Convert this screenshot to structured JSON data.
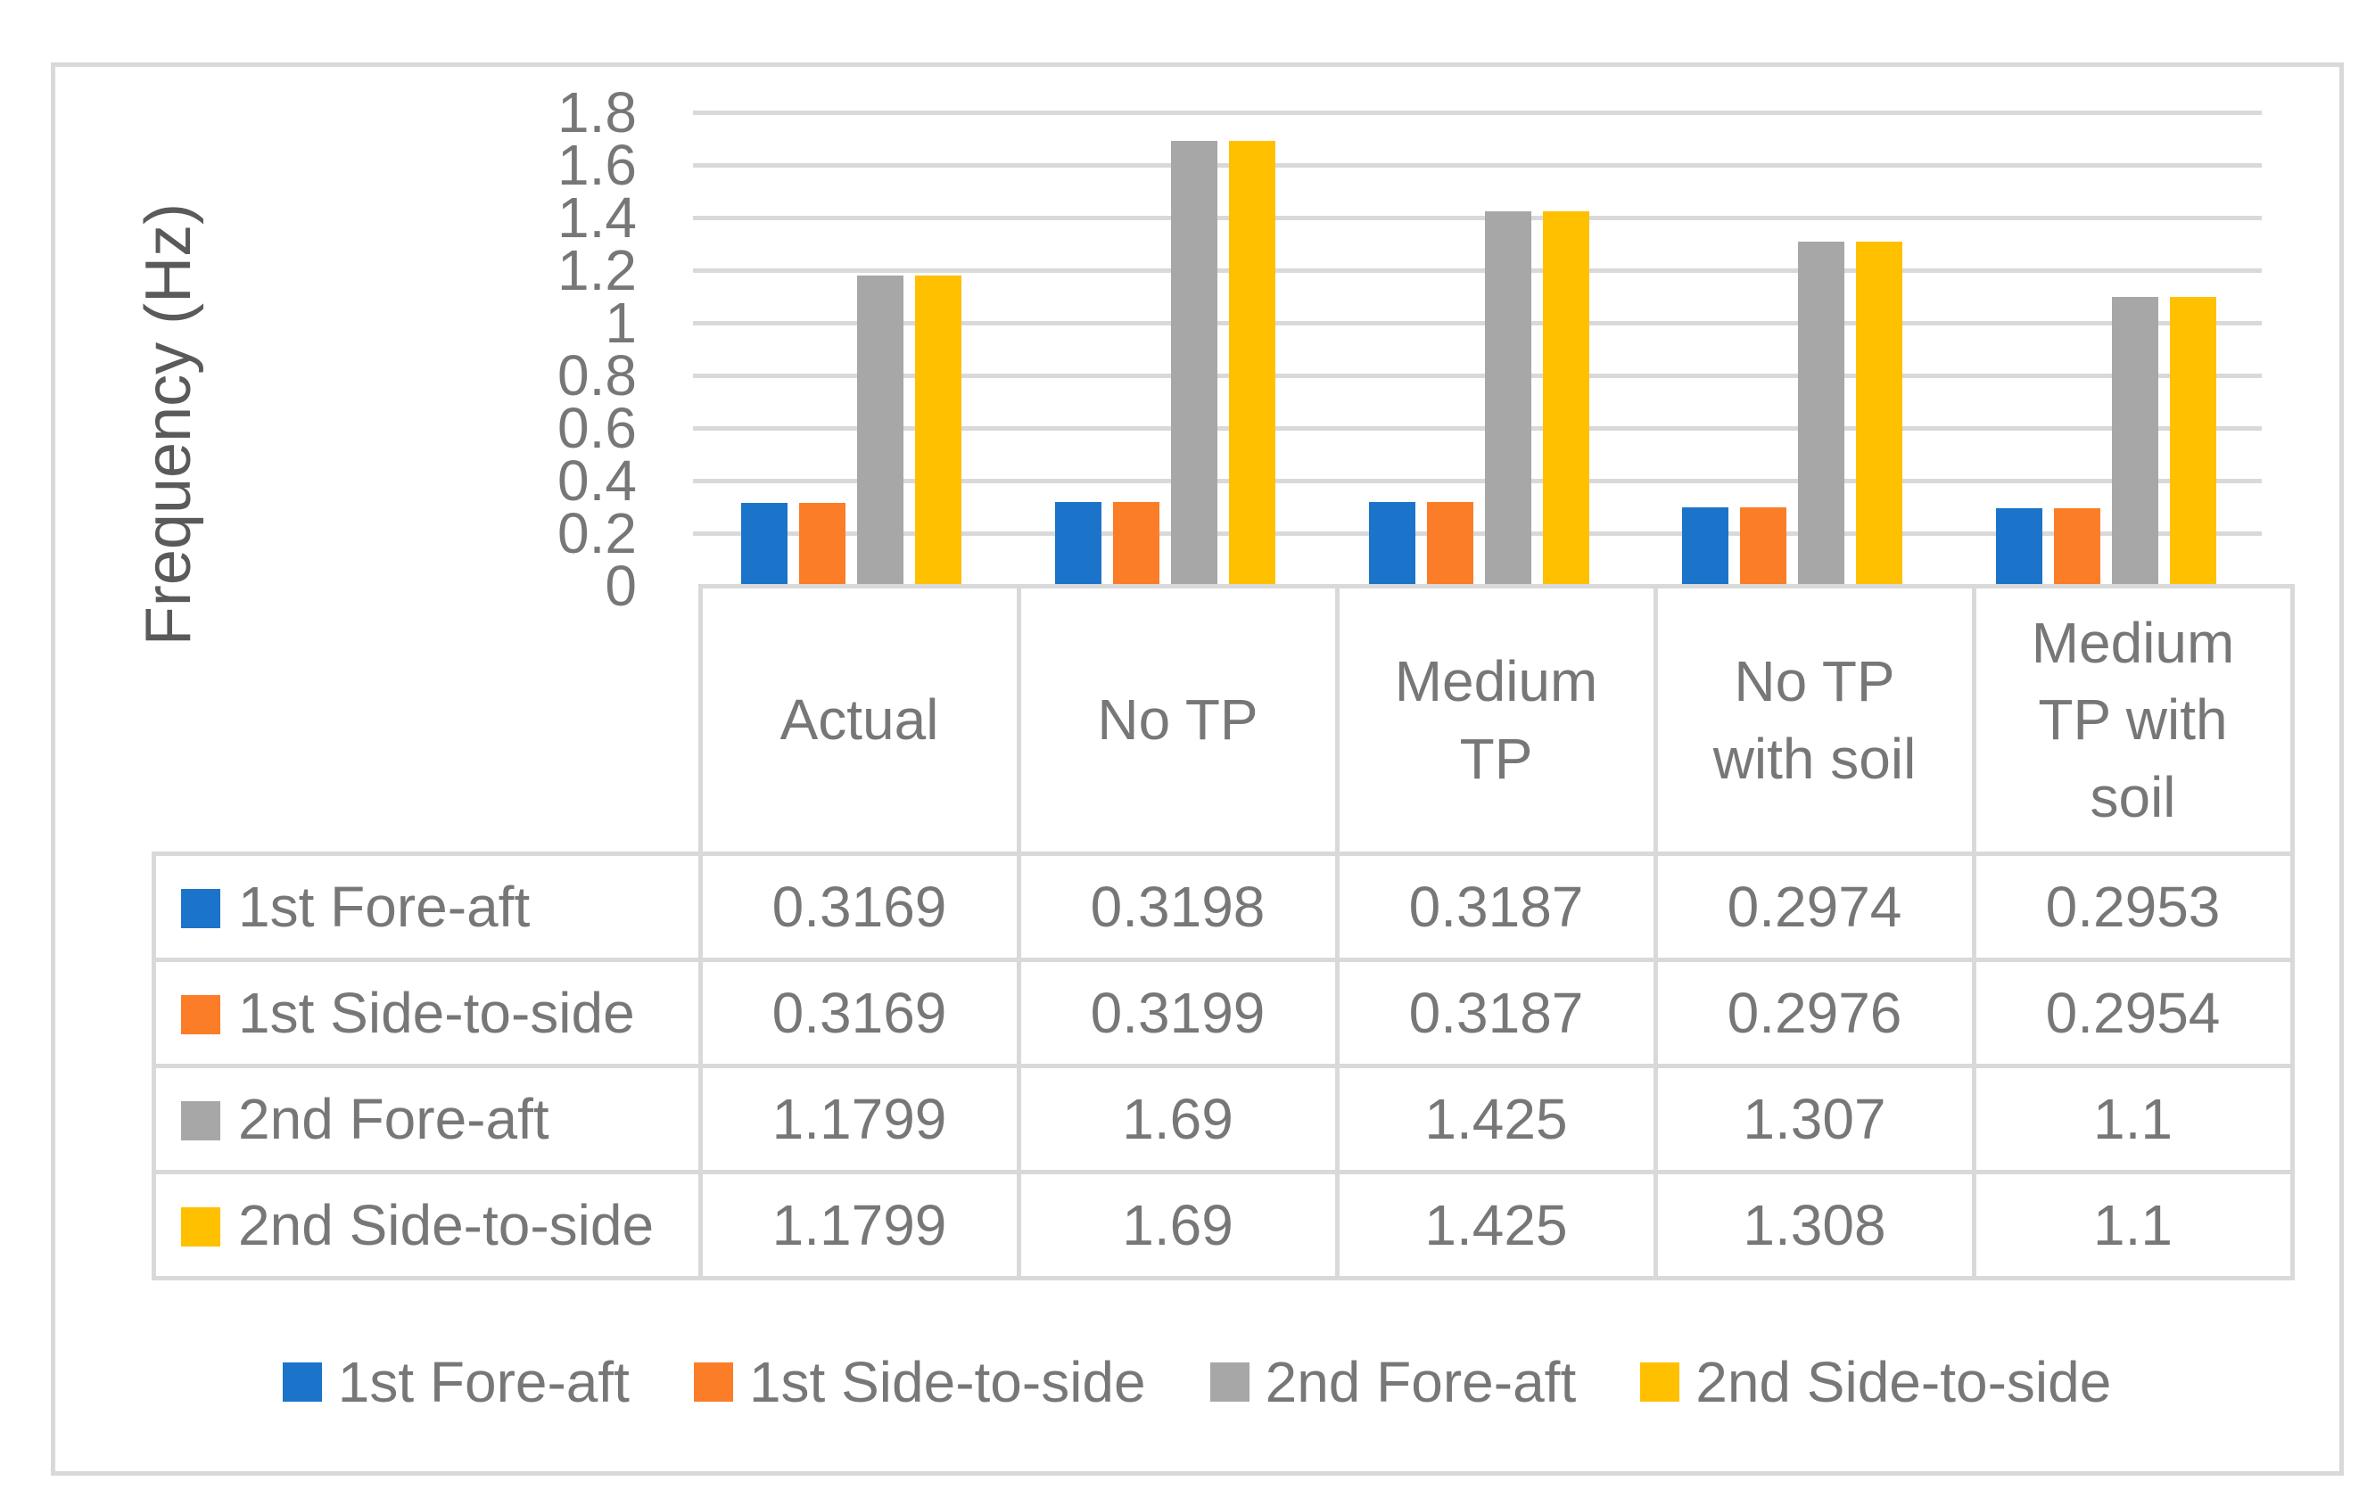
{
  "figure": {
    "ylabel": "Frequency (Hz)"
  },
  "theme": {
    "grid_color": "#D9D9D9",
    "frame_color": "#D9D9D9",
    "text_color": "#777777",
    "axis_title_color": "#5A5A5A",
    "background": "#FFFFFF"
  },
  "chart_data": {
    "type": "bar",
    "title": "",
    "xlabel": "",
    "ylabel": "Frequency (Hz)",
    "ylim": [
      0,
      1.8
    ],
    "ytick_step": 0.2,
    "yticks": [
      "1.8",
      "1.6",
      "1.4",
      "1.2",
      "1",
      "0.8",
      "0.6",
      "0.4",
      "0.2",
      "0"
    ],
    "grid": true,
    "legend_position": "bottom",
    "categories": [
      "Actual",
      "No TP",
      "Medium TP",
      "No TP with soil",
      "Medium TP with soil"
    ],
    "category_lines": [
      [
        "Actual"
      ],
      [
        "No TP"
      ],
      [
        "Medium",
        "TP"
      ],
      [
        "No TP",
        "with soil"
      ],
      [
        "Medium",
        "TP with",
        "soil"
      ]
    ],
    "series": [
      {
        "name": "1st Fore-aft",
        "color": "#1B74C9",
        "values": [
          0.3169,
          0.3198,
          0.3187,
          0.2974,
          0.2953
        ]
      },
      {
        "name": "1st Side-to-side",
        "color": "#FB7D28",
        "values": [
          0.3169,
          0.3199,
          0.3187,
          0.2976,
          0.2954
        ]
      },
      {
        "name": "2nd Fore-aft",
        "color": "#A7A7A7",
        "values": [
          1.1799,
          1.69,
          1.425,
          1.307,
          1.1
        ]
      },
      {
        "name": "2nd Side-to-side",
        "color": "#FFC000",
        "values": [
          1.1799,
          1.69,
          1.425,
          1.308,
          1.1
        ]
      }
    ],
    "table_values": [
      [
        "0.3169",
        "0.3198",
        "0.3187",
        "0.2974",
        "0.2953"
      ],
      [
        "0.3169",
        "0.3199",
        "0.3187",
        "0.2976",
        "0.2954"
      ],
      [
        "1.1799",
        "1.69",
        "1.425",
        "1.307",
        "1.1"
      ],
      [
        "1.1799",
        "1.69",
        "1.425",
        "1.308",
        "1.1"
      ]
    ]
  }
}
